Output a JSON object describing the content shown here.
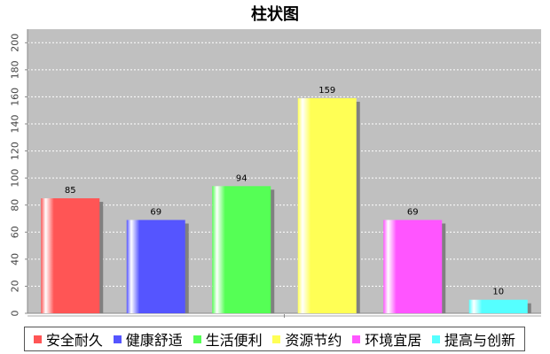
{
  "chart_data": {
    "type": "bar",
    "title": "柱状图",
    "categories": [
      "安全耐久",
      "健康舒适",
      "生活便利",
      "资源节约",
      "环境宜居",
      "提高与创新"
    ],
    "values": [
      85,
      69,
      94,
      159,
      69,
      10
    ],
    "colors": [
      "#ff5555",
      "#5555ff",
      "#55ff55",
      "#ffff55",
      "#ff55ff",
      "#55ffff"
    ],
    "ylim": [
      0,
      210
    ],
    "yticks": [
      0,
      20,
      40,
      60,
      80,
      100,
      120,
      140,
      160,
      180,
      200
    ],
    "grid": true,
    "plot_background": "#c0c0c0",
    "legend_position": "bottom",
    "data_labels": true
  }
}
